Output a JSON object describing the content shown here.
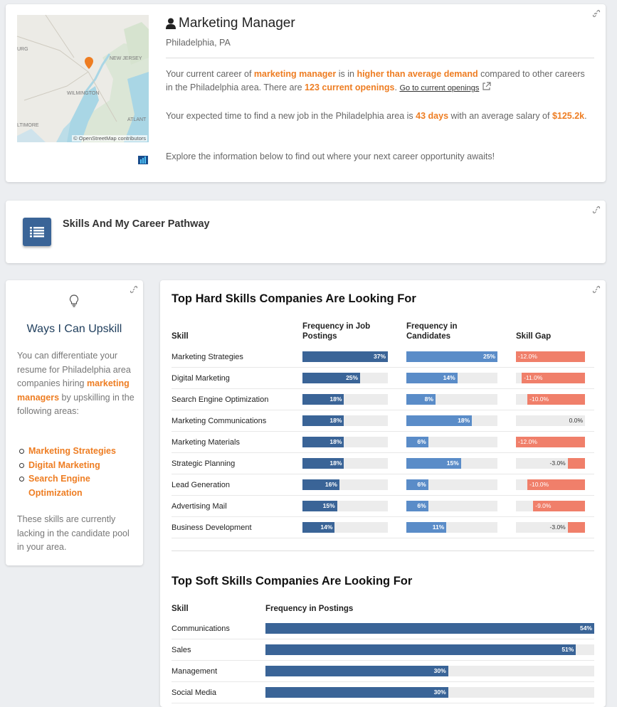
{
  "header": {
    "title": "Marketing Manager",
    "location": "Philadelphia, PA",
    "p1": {
      "a": "Your current career of ",
      "career": "marketing manager",
      "b": " is in ",
      "demand": "higher than average demand",
      "c": " compared to other careers in the Philadelphia area. There are ",
      "openings": "123 current openings",
      "d": ". ",
      "link": "Go to current openings"
    },
    "p2": {
      "a": "Your expected time to find a new job in the Philadelphia area is ",
      "days": "43 days",
      "b": " with an average salary of ",
      "salary": "$125.2k",
      "c": "."
    },
    "p3": "Explore the information below to find out where your next career opportunity awaits!"
  },
  "map": {
    "credit": "© OpenStreetMap contributors",
    "labels": [
      "URG",
      "NEW JERSEY",
      "WILMINGTON",
      "ATLANT",
      "LTIMORE"
    ]
  },
  "pathway": {
    "title": "Skills And My Career Pathway"
  },
  "upskill": {
    "title": "Ways I Can Upskill",
    "intro_a": "You can differentiate your resume for Philadelphia area companies hiring ",
    "intro_career": "marketing managers",
    "intro_b": " by upskilling in the following areas:",
    "items": [
      "Marketing Strategies",
      "Digital Marketing",
      "Search Engine Optimization"
    ],
    "outro": "These skills are currently lacking in the candidate pool in your area."
  },
  "hard": {
    "title": "Top Hard Skills Companies Are Looking For",
    "col_skill": "Skill",
    "col_jobs": "Frequency in Job Postings",
    "col_cands": "Frequency in Candidates",
    "col_gap": "Skill Gap",
    "rows": [
      {
        "skill": "Marketing Strategies",
        "jobs": 37,
        "jobs_label": "37%",
        "cands": 25,
        "cands_label": "25%",
        "gap": -12.0,
        "gap_label": "-12.0%"
      },
      {
        "skill": "Digital Marketing",
        "jobs": 25,
        "jobs_label": "25%",
        "cands": 14,
        "cands_label": "14%",
        "gap": -11.0,
        "gap_label": "-11.0%"
      },
      {
        "skill": "Search Engine Optimization",
        "jobs": 18,
        "jobs_label": "18%",
        "cands": 8,
        "cands_label": "8%",
        "gap": -10.0,
        "gap_label": "-10.0%"
      },
      {
        "skill": "Marketing Communications",
        "jobs": 18,
        "jobs_label": "18%",
        "cands": 18,
        "cands_label": "18%",
        "gap": 0.0,
        "gap_label": "0.0%"
      },
      {
        "skill": "Marketing Materials",
        "jobs": 18,
        "jobs_label": "18%",
        "cands": 6,
        "cands_label": "6%",
        "gap": -12.0,
        "gap_label": "-12.0%"
      },
      {
        "skill": "Strategic Planning",
        "jobs": 18,
        "jobs_label": "18%",
        "cands": 15,
        "cands_label": "15%",
        "gap": -3.0,
        "gap_label": "-3.0%"
      },
      {
        "skill": "Lead Generation",
        "jobs": 16,
        "jobs_label": "16%",
        "cands": 6,
        "cands_label": "6%",
        "gap": -10.0,
        "gap_label": "-10.0%"
      },
      {
        "skill": "Advertising Mail",
        "jobs": 15,
        "jobs_label": "15%",
        "cands": 6,
        "cands_label": "6%",
        "gap": -9.0,
        "gap_label": "-9.0%"
      },
      {
        "skill": "Business Development",
        "jobs": 14,
        "jobs_label": "14%",
        "cands": 11,
        "cands_label": "11%",
        "gap": -3.0,
        "gap_label": "-3.0%"
      }
    ]
  },
  "soft": {
    "title": "Top Soft Skills Companies Are Looking For",
    "col_skill": "Skill",
    "col_freq": "Frequency in Postings",
    "rows": [
      {
        "skill": "Communications",
        "freq": 54,
        "freq_label": "54%"
      },
      {
        "skill": "Sales",
        "freq": 51,
        "freq_label": "51%"
      },
      {
        "skill": "Management",
        "freq": 30,
        "freq_label": "30%"
      },
      {
        "skill": "Social Media",
        "freq": 30,
        "freq_label": "30%"
      }
    ]
  },
  "colors": {
    "accent": "#ee7d22",
    "jobs_bar": "#3a6497",
    "cands_bar": "#5a8cc8",
    "gap_bar": "#f07f6a",
    "track": "#ececec"
  }
}
